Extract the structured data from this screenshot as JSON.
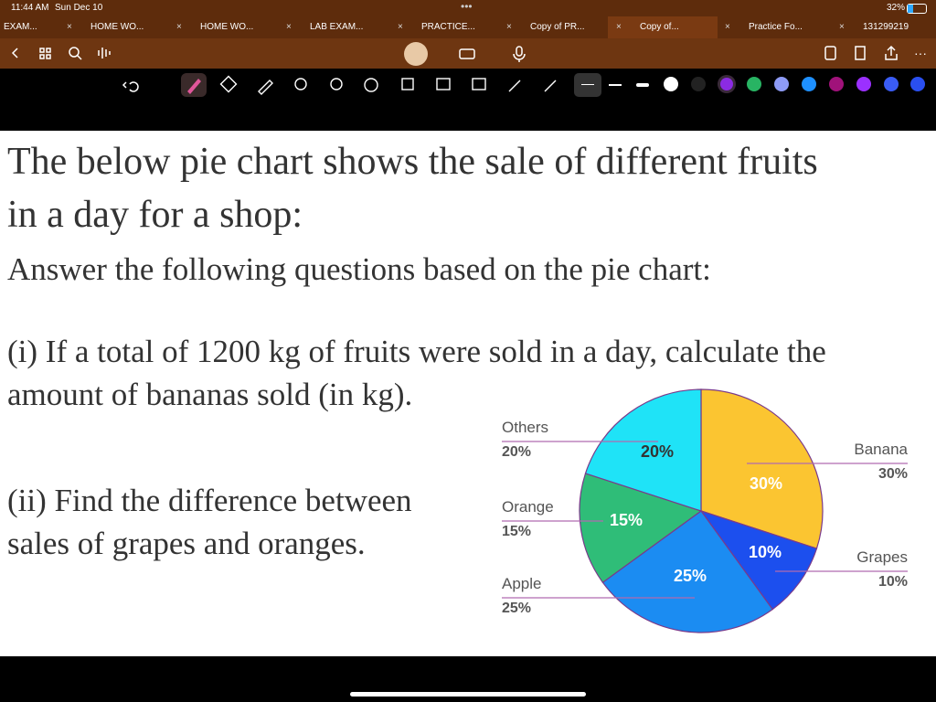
{
  "status": {
    "time": "11:44 AM",
    "date": "Sun Dec 10",
    "battery": "32%"
  },
  "tabs": [
    "EXAM...",
    "HOME WO...",
    "HOME WO...",
    "LAB EXAM...",
    "PRACTICE...",
    "Copy of PR...",
    "Copy of...",
    "Practice Fo...",
    "131299219"
  ],
  "document": {
    "title_lines": [
      "The below pie chart shows the sale of different fruits",
      "in a day for a shop:"
    ],
    "instruction": "Answer the following questions based on the pie chart:",
    "question_1_lines": [
      "(i) If a total of 1200 kg of fruits were sold in a day, calculate the",
      "amount of bananas sold (in kg)."
    ],
    "question_2_lines": [
      "(ii) Find the difference between",
      "sales of grapes and oranges."
    ]
  },
  "chart_data": {
    "type": "pie",
    "categories": [
      "Banana",
      "Grapes",
      "Apple",
      "Orange",
      "Others"
    ],
    "values": [
      30,
      10,
      25,
      15,
      20
    ],
    "value_labels": [
      "30%",
      "10%",
      "25%",
      "15%",
      "20%"
    ],
    "colors": [
      "#fbc531",
      "#1c4fee",
      "#1b8cf2",
      "#2fbd78",
      "#1fe3f7"
    ]
  }
}
